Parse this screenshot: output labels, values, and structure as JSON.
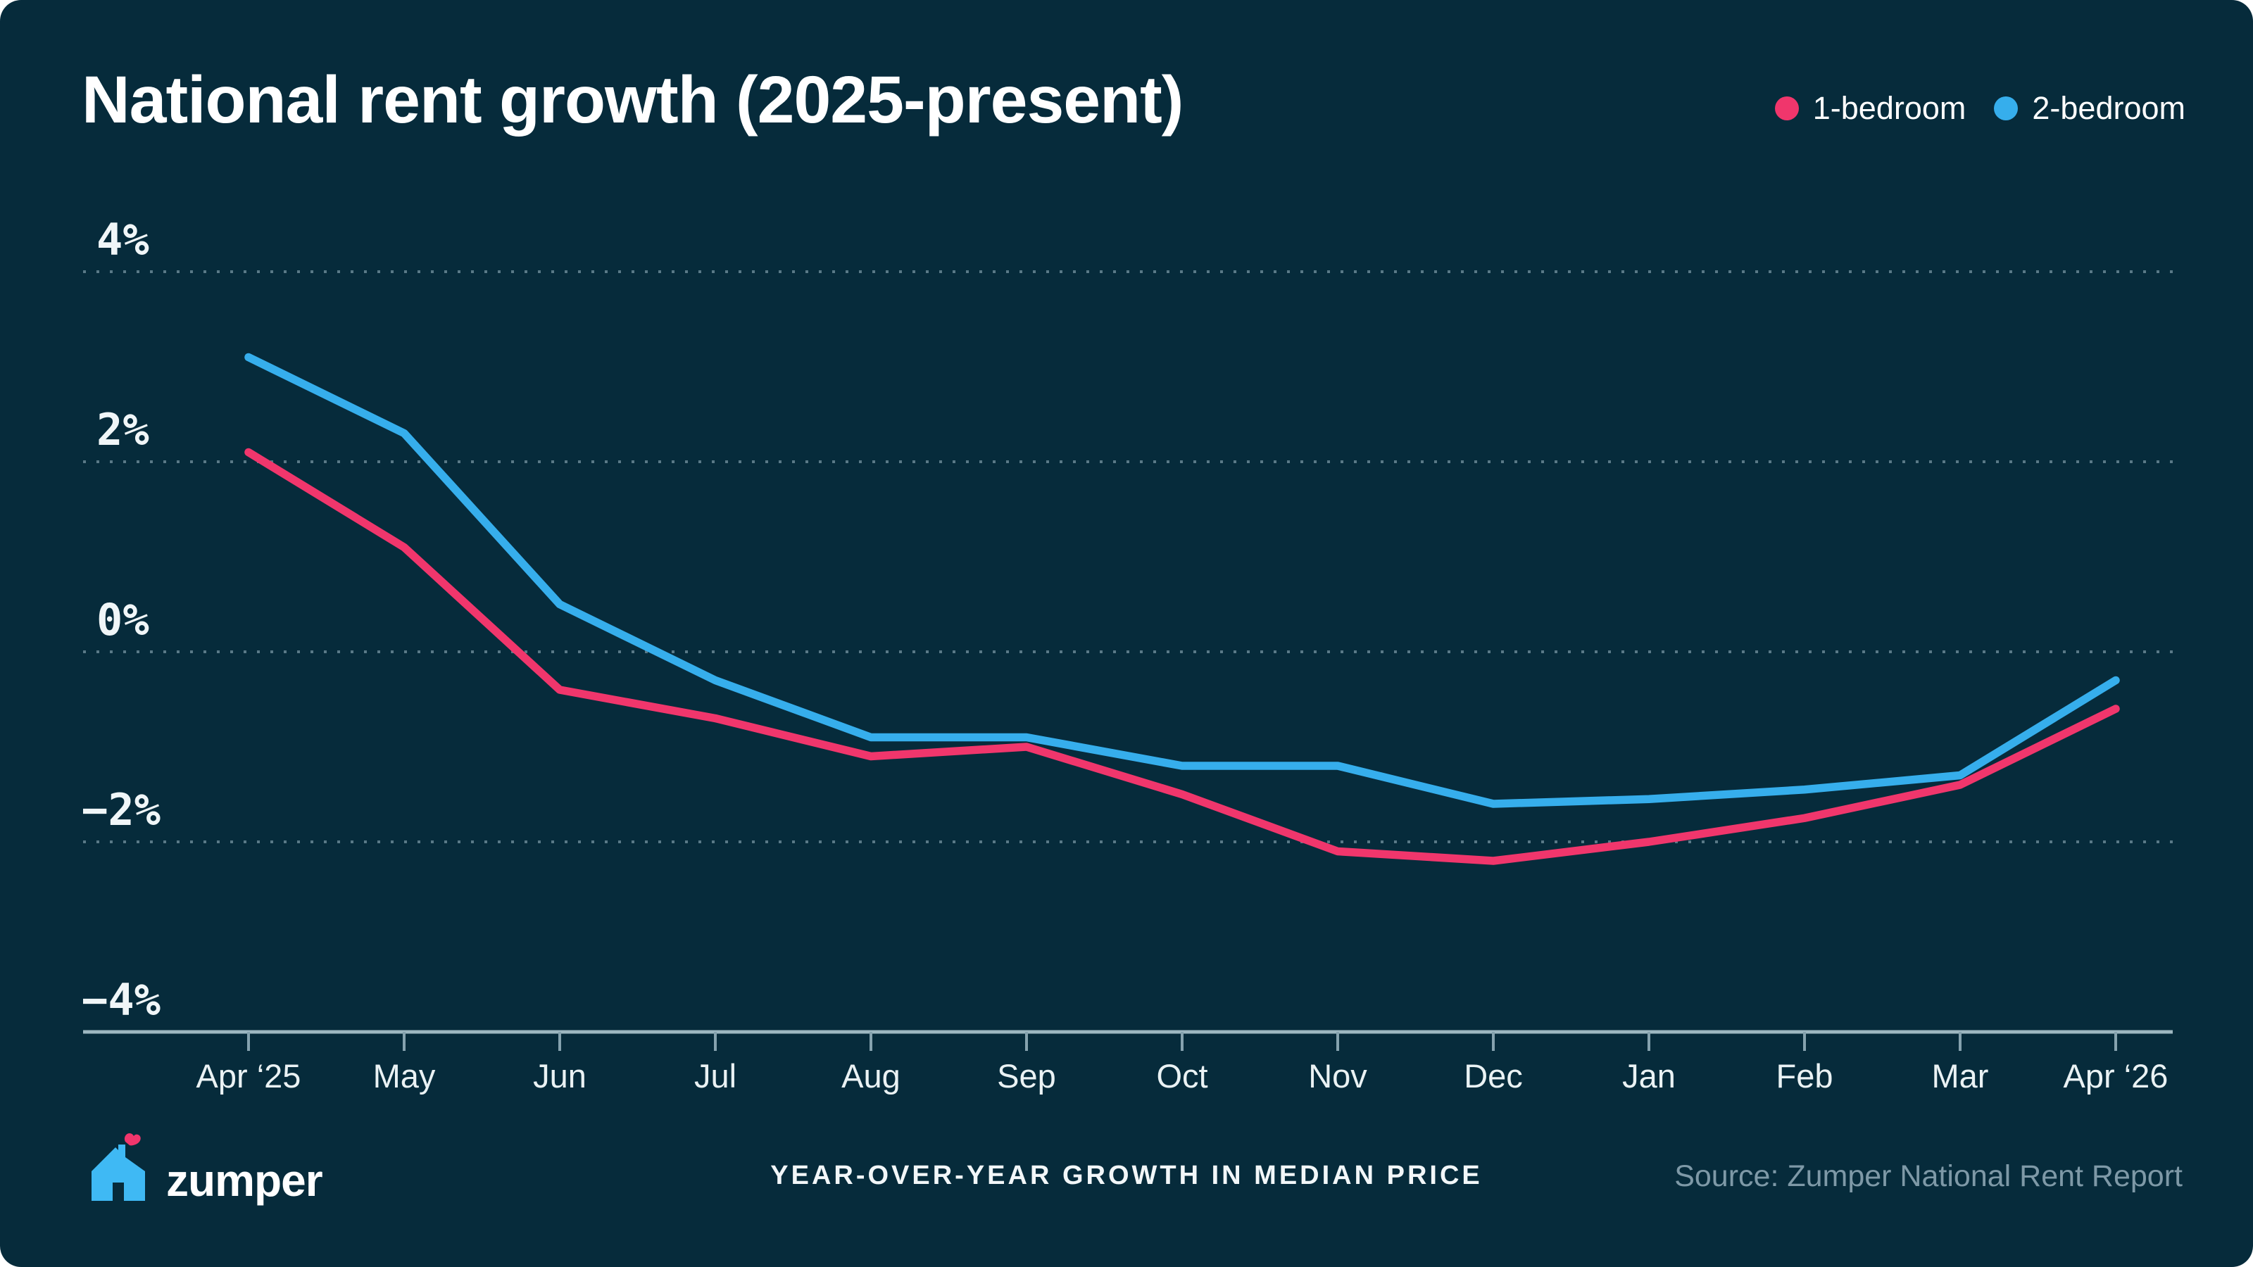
{
  "title": "National rent growth (2025-present)",
  "legend": [
    {
      "label": "1-bedroom",
      "color": "#F0366C"
    },
    {
      "label": "2-bedroom",
      "color": "#36AEEC"
    }
  ],
  "footer": {
    "brand": "zumper",
    "caption": "YEAR-OVER-YEAR GROWTH IN MEDIAN PRICE",
    "source": "Source: Zumper National Rent Report"
  },
  "icons": {
    "logo_house": "zumper-house-icon",
    "logo_heart": "heart-icon"
  },
  "colors": {
    "background": "#062B3B",
    "pink": "#F0366C",
    "blue": "#36AEEC",
    "grid_dots": "#9DBAC6",
    "axis_line": "#9DB7C1",
    "tick": "#85A2AE",
    "tick_label": "#F0F6F8",
    "month_label": "#EAF2F4"
  },
  "chart_data": {
    "type": "line",
    "x": [
      "Apr ‘25",
      "May",
      "Jun",
      "Jul",
      "Aug",
      "Sep",
      "Oct",
      "Nov",
      "Dec",
      "Jan",
      "Feb",
      "Mar",
      "Apr ‘26"
    ],
    "series": [
      {
        "name": "1-bedroom",
        "color": "#F0366C",
        "values": [
          2.1,
          1.1,
          -0.4,
          -0.7,
          -1.1,
          -1.0,
          -1.5,
          -2.1,
          -2.2,
          -2.0,
          -1.75,
          -1.4,
          -0.6
        ]
      },
      {
        "name": "2-bedroom",
        "color": "#36AEEC",
        "values": [
          3.1,
          2.3,
          0.5,
          -0.3,
          -0.9,
          -0.9,
          -1.2,
          -1.2,
          -1.6,
          -1.55,
          -1.45,
          -1.3,
          -0.3
        ]
      }
    ],
    "title": "National rent growth (2025-present)",
    "xlabel": "",
    "ylabel": "",
    "ylim": [
      -4,
      4
    ],
    "yticks": [
      4,
      2,
      0,
      -2,
      -4
    ],
    "ytick_format": "percent",
    "grid": "dotted-horizontal",
    "legend_position": "top-right"
  }
}
